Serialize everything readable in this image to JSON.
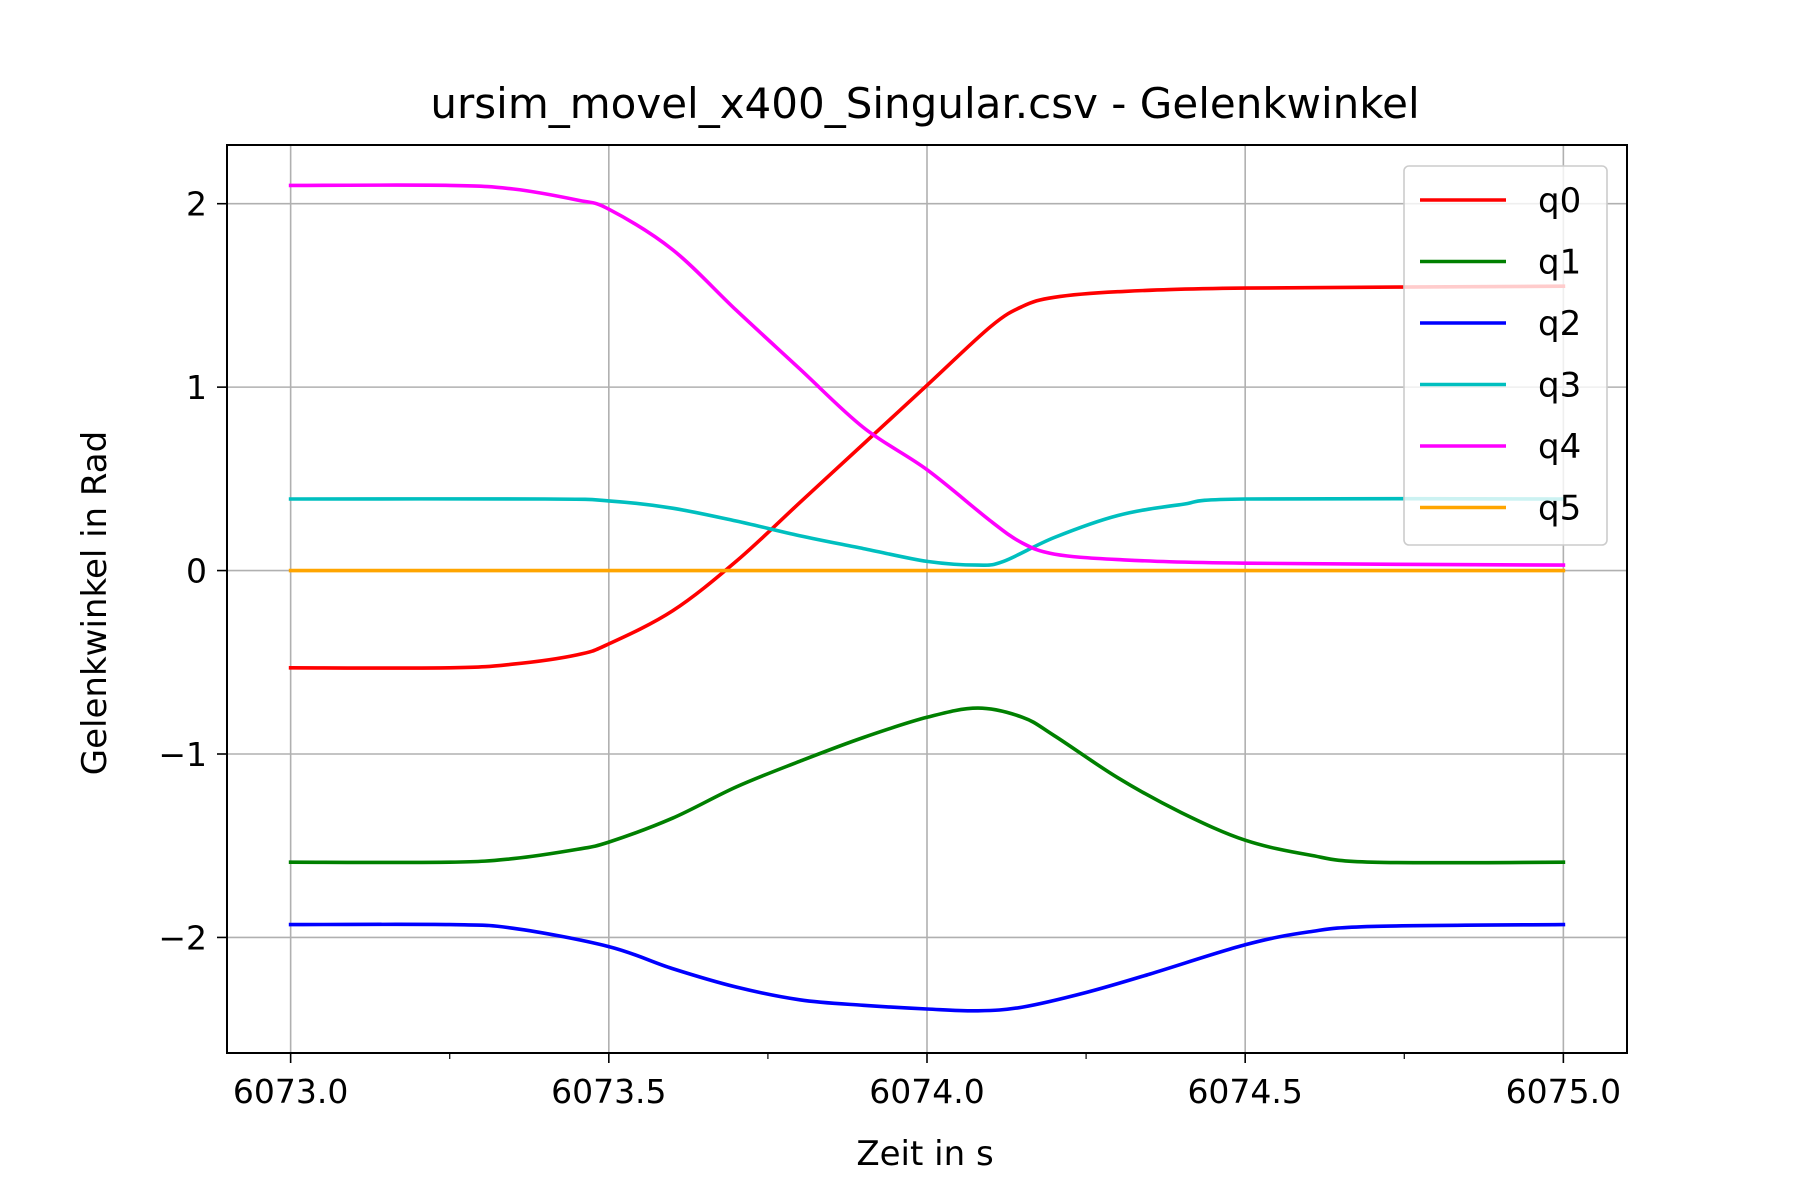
{
  "chart_data": {
    "type": "line",
    "title": "ursim_movel_x400_Singular.csv - Gelenkwinkel",
    "xlabel": "Zeit in s",
    "ylabel": "Gelenkwinkel in Rad",
    "xlim": [
      6072.9,
      6075.1
    ],
    "ylim": [
      -2.63,
      2.32
    ],
    "xticks": [
      6073.0,
      6073.5,
      6074.0,
      6074.5,
      6075.0
    ],
    "xtick_labels": [
      "6073.0",
      "6073.5",
      "6074.0",
      "6074.5",
      "6075.0"
    ],
    "xminor_ticks": [
      6073.25,
      6073.75,
      6074.25,
      6074.75
    ],
    "yticks": [
      -2,
      -1,
      0,
      1,
      2
    ],
    "ytick_labels": [
      "−2",
      "−1",
      "0",
      "1",
      "2"
    ],
    "grid": true,
    "legend_position": "top-right",
    "series": [
      {
        "name": "q0",
        "color": "#ff0000",
        "points": [
          [
            6073.0,
            -0.53
          ],
          [
            6073.25,
            -0.53
          ],
          [
            6073.35,
            -0.51
          ],
          [
            6073.45,
            -0.46
          ],
          [
            6073.5,
            -0.4
          ],
          [
            6073.6,
            -0.22
          ],
          [
            6073.7,
            0.05
          ],
          [
            6073.8,
            0.37
          ],
          [
            6073.9,
            0.69
          ],
          [
            6074.0,
            1.01
          ],
          [
            6074.1,
            1.33
          ],
          [
            6074.15,
            1.44
          ],
          [
            6074.2,
            1.49
          ],
          [
            6074.3,
            1.52
          ],
          [
            6074.5,
            1.54
          ],
          [
            6075.0,
            1.55
          ]
        ]
      },
      {
        "name": "q1",
        "color": "#008000",
        "points": [
          [
            6073.0,
            -1.59
          ],
          [
            6073.25,
            -1.59
          ],
          [
            6073.35,
            -1.57
          ],
          [
            6073.45,
            -1.52
          ],
          [
            6073.5,
            -1.48
          ],
          [
            6073.6,
            -1.35
          ],
          [
            6073.7,
            -1.18
          ],
          [
            6073.8,
            -1.04
          ],
          [
            6073.9,
            -0.91
          ],
          [
            6074.0,
            -0.8
          ],
          [
            6074.08,
            -0.75
          ],
          [
            6074.15,
            -0.8
          ],
          [
            6074.2,
            -0.9
          ],
          [
            6074.3,
            -1.13
          ],
          [
            6074.4,
            -1.32
          ],
          [
            6074.5,
            -1.47
          ],
          [
            6074.6,
            -1.55
          ],
          [
            6074.7,
            -1.59
          ],
          [
            6075.0,
            -1.59
          ]
        ]
      },
      {
        "name": "q2",
        "color": "#0000ff",
        "points": [
          [
            6073.0,
            -1.93
          ],
          [
            6073.25,
            -1.93
          ],
          [
            6073.35,
            -1.95
          ],
          [
            6073.5,
            -2.05
          ],
          [
            6073.6,
            -2.17
          ],
          [
            6073.7,
            -2.27
          ],
          [
            6073.8,
            -2.34
          ],
          [
            6073.9,
            -2.37
          ],
          [
            6074.0,
            -2.39
          ],
          [
            6074.08,
            -2.4
          ],
          [
            6074.15,
            -2.38
          ],
          [
            6074.25,
            -2.3
          ],
          [
            6074.35,
            -2.2
          ],
          [
            6074.5,
            -2.04
          ],
          [
            6074.6,
            -1.97
          ],
          [
            6074.7,
            -1.94
          ],
          [
            6075.0,
            -1.93
          ]
        ]
      },
      {
        "name": "q3",
        "color": "#00bfbf",
        "points": [
          [
            6073.0,
            0.39
          ],
          [
            6073.4,
            0.39
          ],
          [
            6073.5,
            0.38
          ],
          [
            6073.6,
            0.34
          ],
          [
            6073.7,
            0.27
          ],
          [
            6073.8,
            0.19
          ],
          [
            6073.9,
            0.12
          ],
          [
            6074.0,
            0.05
          ],
          [
            6074.08,
            0.03
          ],
          [
            6074.12,
            0.05
          ],
          [
            6074.2,
            0.18
          ],
          [
            6074.3,
            0.3
          ],
          [
            6074.4,
            0.36
          ],
          [
            6074.5,
            0.39
          ],
          [
            6075.0,
            0.39
          ]
        ]
      },
      {
        "name": "q4",
        "color": "#ff00ff",
        "points": [
          [
            6073.0,
            2.1
          ],
          [
            6073.25,
            2.1
          ],
          [
            6073.35,
            2.08
          ],
          [
            6073.45,
            2.02
          ],
          [
            6073.5,
            1.97
          ],
          [
            6073.6,
            1.75
          ],
          [
            6073.7,
            1.42
          ],
          [
            6073.8,
            1.1
          ],
          [
            6073.9,
            0.78
          ],
          [
            6074.0,
            0.55
          ],
          [
            6074.1,
            0.27
          ],
          [
            6074.15,
            0.15
          ],
          [
            6074.2,
            0.09
          ],
          [
            6074.3,
            0.06
          ],
          [
            6074.5,
            0.04
          ],
          [
            6075.0,
            0.03
          ]
        ]
      },
      {
        "name": "q5",
        "color": "#ffa500",
        "points": [
          [
            6073.0,
            0.0
          ],
          [
            6075.0,
            0.0
          ]
        ]
      }
    ]
  }
}
